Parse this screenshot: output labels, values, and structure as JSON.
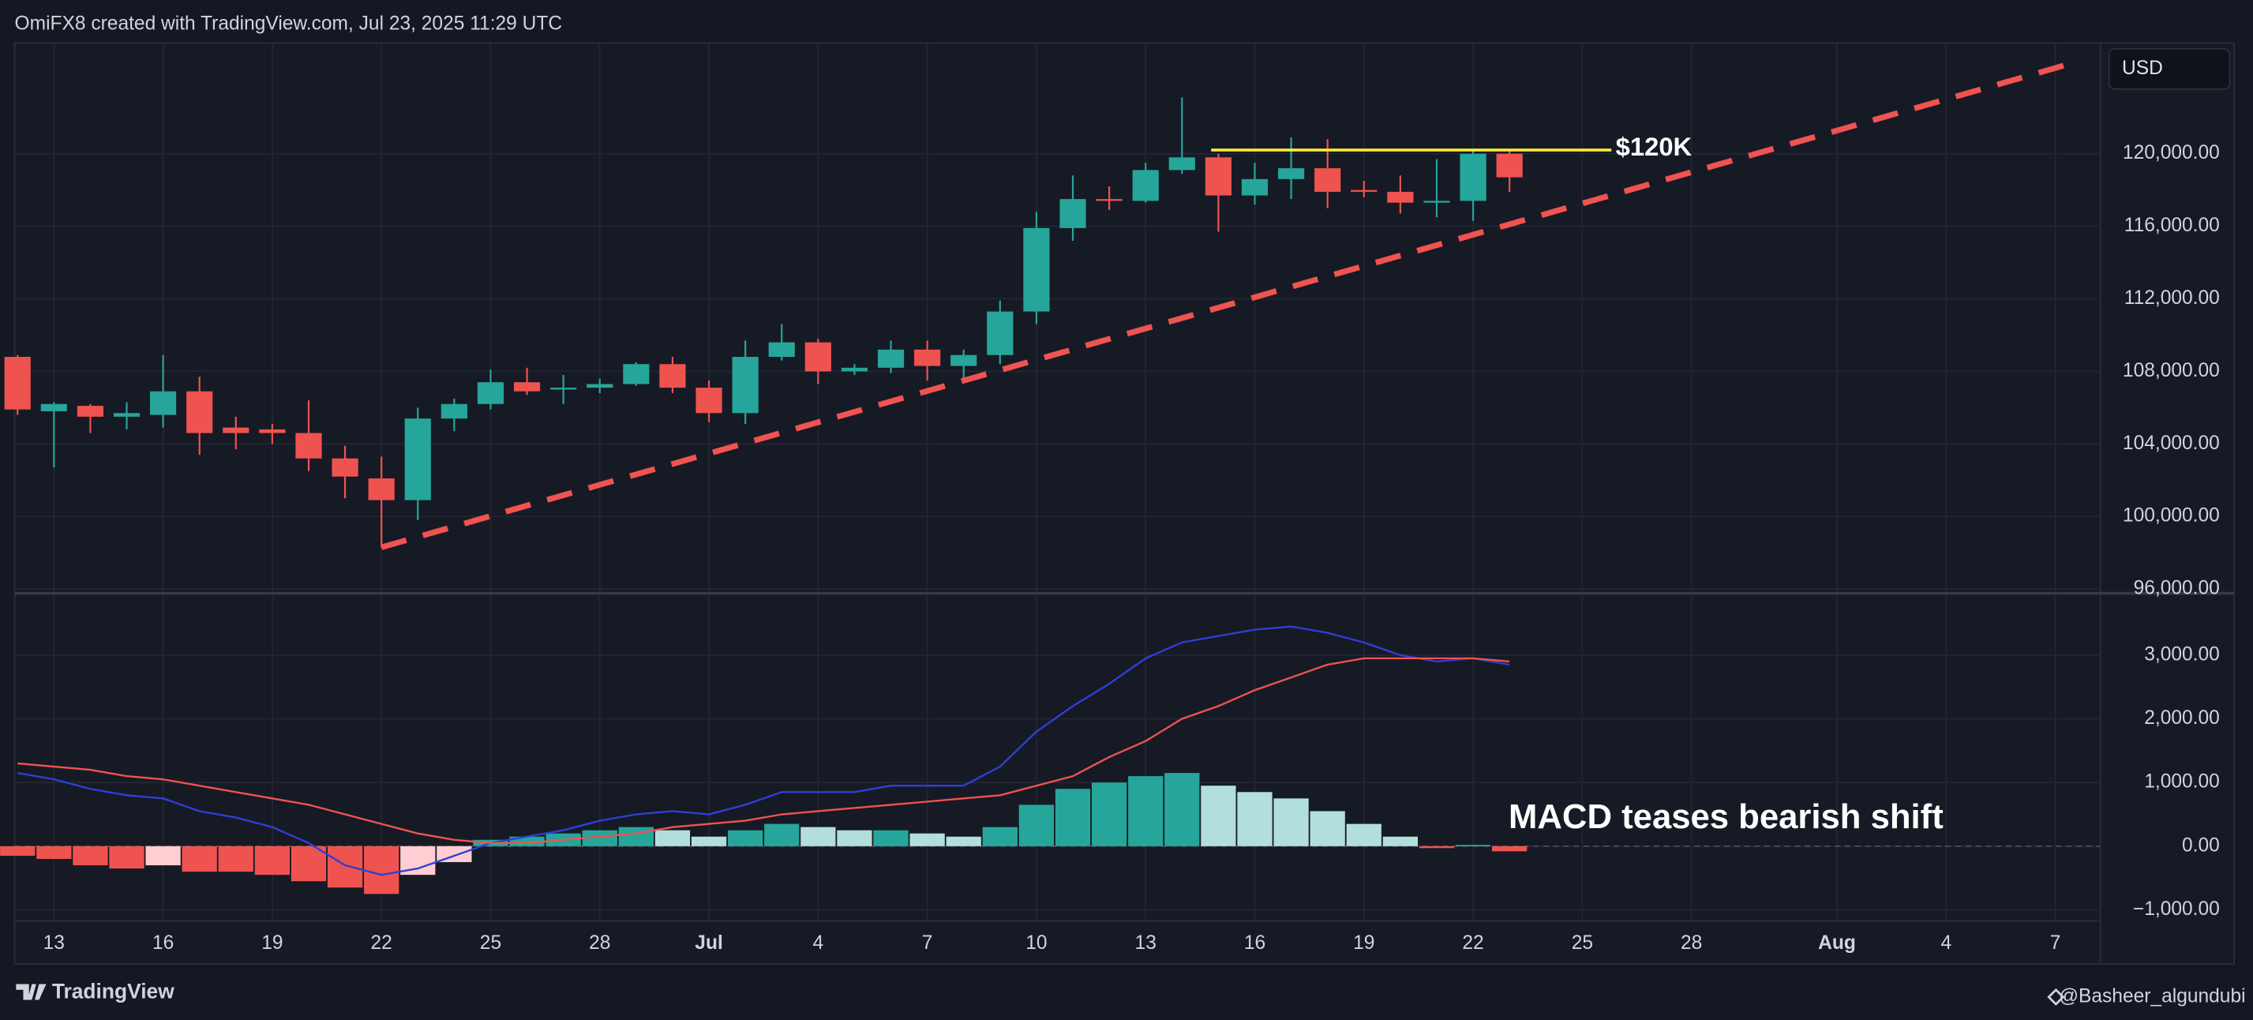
{
  "header": {
    "text": "OmiFX8 created with TradingView.com, Jul 23, 2025 11:29 UTC"
  },
  "currency": "USD",
  "footer": {
    "brand": "TradingView",
    "credit": "@Basheer_algundubi"
  },
  "chart_data": [
    {
      "type": "candlestick",
      "up_color": "#26a69a",
      "down_color": "#ef5350",
      "grid": true,
      "x": [
        0,
        1,
        2,
        3,
        4,
        5,
        6,
        7,
        8,
        9,
        10,
        11,
        12,
        13,
        14,
        15,
        16,
        17,
        18,
        19,
        20,
        21,
        22,
        23,
        24,
        25,
        26,
        27,
        28,
        29,
        30,
        31,
        32,
        33,
        34,
        35,
        36,
        37,
        38,
        39,
        40,
        41
      ],
      "open": [
        108800,
        105800,
        106100,
        105500,
        105600,
        106900,
        104900,
        104800,
        104600,
        103200,
        102100,
        100900,
        105400,
        106200,
        107400,
        107000,
        107100,
        107300,
        108400,
        107100,
        105700,
        108800,
        109600,
        108000,
        108200,
        109200,
        108300,
        108900,
        111300,
        115900,
        117500,
        117400,
        119100,
        119800,
        117700,
        118600,
        119200,
        118000,
        117900,
        117300,
        117400,
        120000
      ],
      "high": [
        108900,
        106300,
        106200,
        106300,
        108900,
        107700,
        105500,
        105100,
        106400,
        103900,
        103300,
        106000,
        106500,
        108100,
        108200,
        107800,
        107600,
        108500,
        108800,
        107500,
        109700,
        110600,
        109800,
        108400,
        109700,
        109700,
        109200,
        111900,
        116800,
        118800,
        118200,
        119500,
        123100,
        120000,
        119500,
        120900,
        120800,
        118500,
        118800,
        119700,
        120200,
        120200
      ],
      "low": [
        105600,
        102700,
        104600,
        104800,
        104900,
        103400,
        103700,
        104000,
        102500,
        101000,
        98300,
        99800,
        104700,
        105900,
        106700,
        106200,
        106800,
        107200,
        106800,
        105200,
        105100,
        108600,
        107300,
        107800,
        107900,
        107500,
        107600,
        108400,
        110600,
        115200,
        116900,
        117300,
        118900,
        115700,
        117200,
        117500,
        117000,
        117600,
        116700,
        116500,
        116300,
        117900
      ],
      "close": [
        105900,
        106200,
        105500,
        105700,
        106900,
        104600,
        104600,
        104600,
        103200,
        102200,
        100900,
        105400,
        106200,
        107400,
        106900,
        107100,
        107300,
        108400,
        107100,
        105700,
        108800,
        109600,
        108000,
        108200,
        109200,
        108300,
        108900,
        111300,
        115900,
        117500,
        117400,
        119100,
        119800,
        117700,
        118600,
        119200,
        117900,
        117900,
        117300,
        117400,
        120000,
        118700
      ],
      "xlim": [
        -0.08,
        57.24
      ],
      "ylim": [
        95842,
        126099
      ],
      "yticks": [
        {
          "value": 96000,
          "label": "96,000.00"
        },
        {
          "value": 100000,
          "label": "100,000.00"
        },
        {
          "value": 104000,
          "label": "104,000.00"
        },
        {
          "value": 108000,
          "label": "108,000.00"
        },
        {
          "value": 112000,
          "label": "112,000.00"
        },
        {
          "value": 116000,
          "label": "116,000.00"
        },
        {
          "value": 120000,
          "label": "120,000.00"
        }
      ],
      "lines": [
        {
          "color": "#f05350",
          "style": "dashed",
          "x": [
            10,
            56.6
          ],
          "y": [
            98300,
            125070
          ]
        },
        {
          "color": "#ffeb3b",
          "style": "solid",
          "x": [
            32.8,
            43.8
          ],
          "y": [
            120200,
            120200
          ],
          "label": "$120K"
        }
      ]
    },
    {
      "type": "macd",
      "grid": true,
      "x": [
        0,
        1,
        2,
        3,
        4,
        5,
        6,
        7,
        8,
        9,
        10,
        11,
        12,
        13,
        14,
        15,
        16,
        17,
        18,
        19,
        20,
        21,
        22,
        23,
        24,
        25,
        26,
        27,
        28,
        29,
        30,
        31,
        32,
        33,
        34,
        35,
        36,
        37,
        38,
        39,
        40,
        41
      ],
      "histogram": {
        "values": [
          -150,
          -200,
          -300,
          -350,
          -300,
          -400,
          -400,
          -450,
          -550,
          -650,
          -750,
          -450,
          -250,
          100,
          150,
          200,
          250,
          300,
          250,
          150,
          250,
          350,
          300,
          250,
          250,
          200,
          150,
          300,
          650,
          900,
          1000,
          1100,
          1150,
          950,
          850,
          750,
          550,
          350,
          150,
          -30,
          20,
          -80
        ],
        "colors": [
          "#ef5350",
          "#ef5350",
          "#ef5350",
          "#ef5350",
          "#ffcdd2",
          "#ef5350",
          "#ef5350",
          "#ef5350",
          "#ef5350",
          "#ef5350",
          "#ef5350",
          "#ffcdd2",
          "#ffcdd2",
          "#26a69a",
          "#26a69a",
          "#26a69a",
          "#26a69a",
          "#26a69a",
          "#b2dfdb",
          "#b2dfdb",
          "#26a69a",
          "#26a69a",
          "#b2dfdb",
          "#b2dfdb",
          "#26a69a",
          "#b2dfdb",
          "#b2dfdb",
          "#26a69a",
          "#26a69a",
          "#26a69a",
          "#26a69a",
          "#26a69a",
          "#26a69a",
          "#b2dfdb",
          "#b2dfdb",
          "#b2dfdb",
          "#b2dfdb",
          "#b2dfdb",
          "#b2dfdb",
          "#ef5350",
          "#26a69a",
          "#ef5350"
        ]
      },
      "series": [
        {
          "color": "#2f3fd6",
          "values": [
            1150,
            1050,
            900,
            800,
            750,
            550,
            450,
            300,
            50,
            -300,
            -450,
            -350,
            -150,
            50,
            150,
            250,
            400,
            500,
            550,
            500,
            650,
            850,
            850,
            850,
            950,
            950,
            950,
            1250,
            1800,
            2200,
            2550,
            2950,
            3200,
            3300,
            3400,
            3450,
            3350,
            3200,
            3000,
            2900,
            2950,
            2850
          ]
        },
        {
          "color": "#ef5350",
          "values": [
            1300,
            1250,
            1200,
            1100,
            1050,
            950,
            850,
            750,
            650,
            500,
            350,
            200,
            100,
            50,
            50,
            100,
            150,
            200,
            300,
            350,
            400,
            500,
            550,
            600,
            650,
            700,
            750,
            800,
            950,
            1100,
            1400,
            1650,
            2000,
            2200,
            2450,
            2650,
            2850,
            2950,
            2950,
            2950,
            2950,
            2900
          ]
        }
      ],
      "xlim": [
        -0.08,
        57.24
      ],
      "ylim": [
        -1150,
        3948
      ],
      "yticks": [
        {
          "value": -1000,
          "label": "−1,000.00"
        },
        {
          "value": 0,
          "label": "0.00"
        },
        {
          "value": 1000,
          "label": "1,000.00"
        },
        {
          "value": 2000,
          "label": "2,000.00"
        },
        {
          "value": 3000,
          "label": "3,000.00"
        }
      ],
      "xticks": [
        {
          "value": 1,
          "label": "13"
        },
        {
          "value": 4,
          "label": "16"
        },
        {
          "value": 7,
          "label": "19"
        },
        {
          "value": 10,
          "label": "22"
        },
        {
          "value": 13,
          "label": "25"
        },
        {
          "value": 16,
          "label": "28"
        },
        {
          "value": 19,
          "label": "Jul"
        },
        {
          "value": 22,
          "label": "4"
        },
        {
          "value": 25,
          "label": "7"
        },
        {
          "value": 28,
          "label": "10"
        },
        {
          "value": 31,
          "label": "13"
        },
        {
          "value": 34,
          "label": "16"
        },
        {
          "value": 37,
          "label": "19"
        },
        {
          "value": 40,
          "label": "22"
        },
        {
          "value": 43,
          "label": "25"
        },
        {
          "value": 46,
          "label": "28"
        },
        {
          "value": 50,
          "label": "Aug"
        },
        {
          "value": 53,
          "label": "4"
        },
        {
          "value": 56,
          "label": "7"
        }
      ],
      "annotation": "MACD teases bearish shift"
    }
  ]
}
